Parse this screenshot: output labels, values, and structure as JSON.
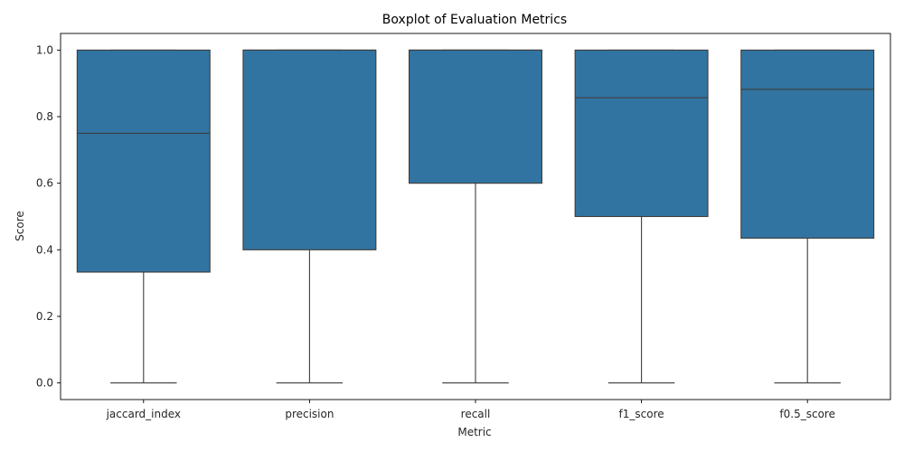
{
  "chart_data": {
    "type": "box",
    "title": "Boxplot of Evaluation Metrics",
    "xlabel": "Metric",
    "ylabel": "Score",
    "ylim": [
      -0.05,
      1.05
    ],
    "yticks": [
      0.0,
      0.2,
      0.4,
      0.6,
      0.8,
      1.0
    ],
    "ytick_labels": [
      "0.0",
      "0.2",
      "0.4",
      "0.6",
      "0.8",
      "1.0"
    ],
    "grid": false,
    "box_color": "#3274a1",
    "line_color": "#3d3d3d",
    "categories": [
      "jaccard_index",
      "precision",
      "recall",
      "f1_score",
      "f0.5_score"
    ],
    "boxes": [
      {
        "label": "jaccard_index",
        "whisker_low": 0.0,
        "q1": 0.333,
        "median": 0.75,
        "q3": 1.0,
        "whisker_high": 1.0
      },
      {
        "label": "precision",
        "whisker_low": 0.0,
        "q1": 0.4,
        "median": 1.0,
        "q3": 1.0,
        "whisker_high": 1.0
      },
      {
        "label": "recall",
        "whisker_low": 0.0,
        "q1": 0.6,
        "median": 1.0,
        "q3": 1.0,
        "whisker_high": 1.0
      },
      {
        "label": "f1_score",
        "whisker_low": 0.0,
        "q1": 0.5,
        "median": 0.857,
        "q3": 1.0,
        "whisker_high": 1.0
      },
      {
        "label": "f0.5_score",
        "whisker_low": 0.0,
        "q1": 0.435,
        "median": 0.882,
        "q3": 1.0,
        "whisker_high": 1.0
      }
    ]
  }
}
